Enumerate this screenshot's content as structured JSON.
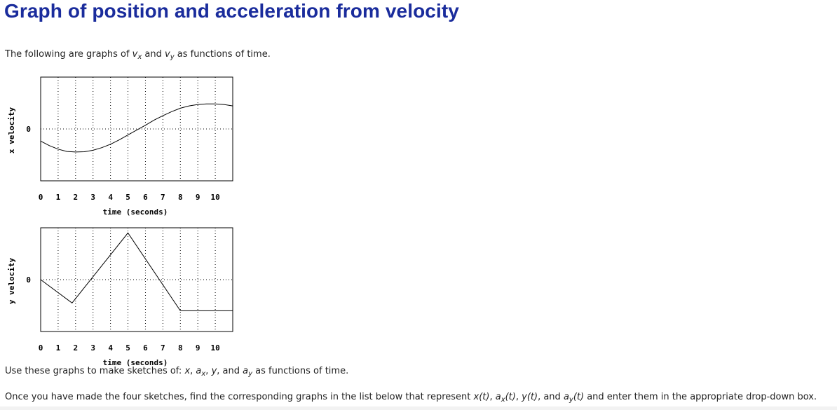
{
  "page_title": "Graph of position and acceleration from velocity",
  "intro": {
    "before": "The following are graphs of ",
    "v1": "v",
    "s1": "x",
    "mid": " and ",
    "v2": "v",
    "s2": "y",
    "after": " as functions of time."
  },
  "instructions_1": {
    "text1": "Use these graphs to make sketches of: ",
    "x": "x",
    "comma1": ", ",
    "ax_a": "a",
    "ax_s": "x",
    "comma2": ", ",
    "y": "y",
    "comma3": ", and ",
    "ay_a": "a",
    "ay_s": "y",
    "text2": " as functions of time."
  },
  "instructions_2": {
    "text1": "Once you have made the four sketches, find the corresponding graphs in the list below that represent ",
    "x": "x",
    "t1": "(t)",
    "c1": ", ",
    "ax_a": "a",
    "ax_s": "x",
    "t2": "(t)",
    "c2": ", ",
    "y": "y",
    "t3": "(t)",
    "c3": ", and ",
    "ay_a": "a",
    "ay_s": "y",
    "t4": "(t)",
    "text2": " and enter them in the appropriate drop-down box."
  },
  "colors": {
    "title": "#1a2c9c",
    "text": "#222222",
    "plot_line": "#000000",
    "grid": "#000000"
  },
  "chart_data": [
    {
      "type": "line",
      "xlabel": "time (seconds)",
      "ylabel": "x velocity",
      "xlim": [
        0,
        11
      ],
      "ylim": [
        -1.8,
        1.8
      ],
      "x_ticks": [
        0,
        1,
        2,
        3,
        4,
        5,
        6,
        7,
        8,
        9,
        10
      ],
      "y_ticks": [
        0
      ],
      "y_tick_labels": [
        "0"
      ],
      "grid": true,
      "x": [
        0,
        0.5,
        1,
        1.5,
        2,
        2.5,
        3,
        3.5,
        4,
        4.5,
        5,
        5.5,
        6,
        6.5,
        7,
        7.5,
        8,
        8.5,
        9,
        9.5,
        10,
        10.5,
        11
      ],
      "y": [
        -0.42,
        -0.58,
        -0.7,
        -0.78,
        -0.8,
        -0.79,
        -0.74,
        -0.65,
        -0.53,
        -0.38,
        -0.21,
        -0.04,
        0.13,
        0.31,
        0.46,
        0.6,
        0.72,
        0.8,
        0.85,
        0.87,
        0.87,
        0.85,
        0.8
      ]
    },
    {
      "type": "line",
      "xlabel": "time (seconds)",
      "ylabel": "y velocity",
      "xlim": [
        0,
        11
      ],
      "ylim": [
        -2.0,
        2.0
      ],
      "x_ticks": [
        0,
        1,
        2,
        3,
        4,
        5,
        6,
        7,
        8,
        9,
        10
      ],
      "y_ticks": [
        0
      ],
      "y_tick_labels": [
        "0"
      ],
      "grid": true,
      "x": [
        0,
        1.8,
        5,
        8,
        11
      ],
      "y": [
        0,
        -0.9,
        1.8,
        -1.2,
        -1.2
      ]
    }
  ]
}
